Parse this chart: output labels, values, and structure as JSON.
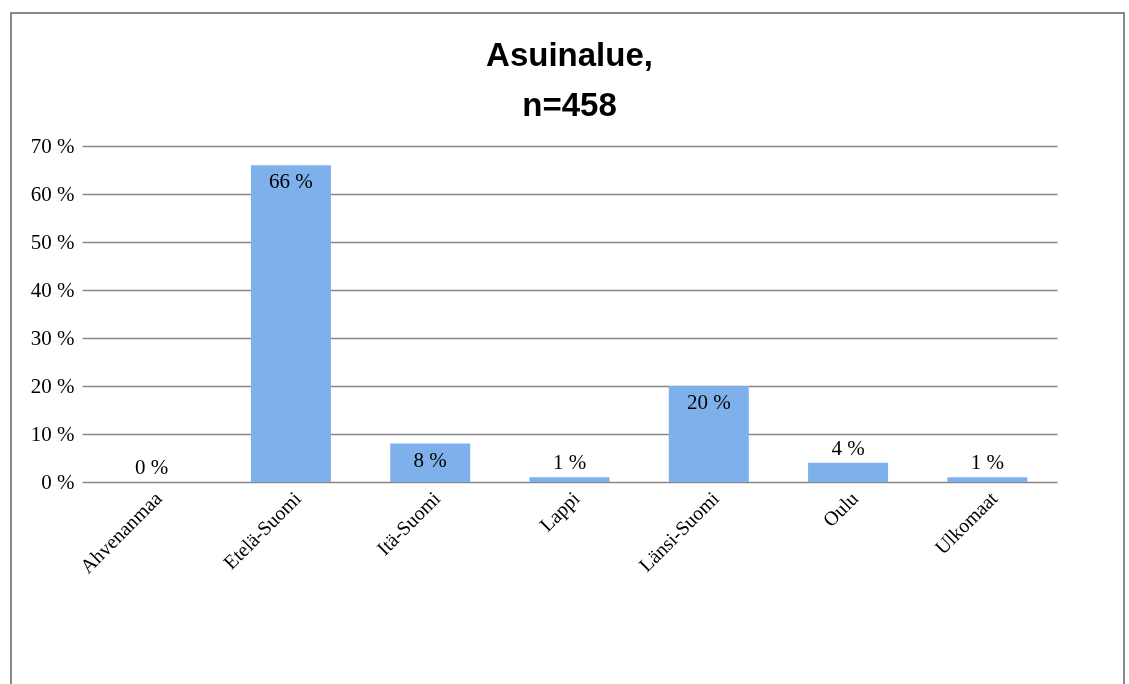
{
  "chart_data": {
    "type": "bar",
    "title": [
      "Asuinalue,",
      "n=458"
    ],
    "categories": [
      "Ahvenanmaa",
      "Etelä-Suomi",
      "Itä-Suomi",
      "Lappi",
      "Länsi-Suomi",
      "Oulu",
      "Ulkomaat"
    ],
    "values": [
      0,
      66,
      8,
      1,
      20,
      4,
      1
    ],
    "value_labels": [
      "0 %",
      "66 %",
      "8 %",
      "1 %",
      "20 %",
      "4 %",
      "1 %"
    ],
    "color": "#7eb1ec",
    "ylim": [
      0,
      70
    ],
    "yticks": [
      {
        "value": 0,
        "label": "0 %"
      },
      {
        "value": 10,
        "label": "10 %"
      },
      {
        "value": 20,
        "label": "20 %"
      },
      {
        "value": 30,
        "label": "30 %"
      },
      {
        "value": 40,
        "label": "40 %"
      },
      {
        "value": 50,
        "label": "50 %"
      },
      {
        "value": 60,
        "label": "60 %"
      },
      {
        "value": 70,
        "label": "70 %"
      }
    ],
    "grid": "y"
  }
}
